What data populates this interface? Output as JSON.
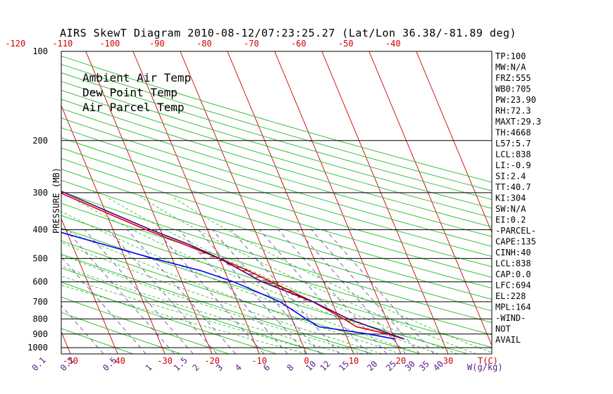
{
  "chart_data": {
    "type": "line",
    "title": "AIRS SkewT Diagram 2010-08-12/07:23:25.27 (Lat/Lon 36.38/-81.89 deg)",
    "ylabel": "PRESSURE (MB)",
    "xlabel": "T(C)",
    "mixing_ratio_unit": "W(g/kg)",
    "pressure_ticks": [
      100,
      200,
      300,
      400,
      500,
      600,
      700,
      800,
      900,
      1000
    ],
    "bottom_temp_ticks": [
      -50,
      -40,
      -30,
      -20,
      -10,
      0,
      10,
      20,
      30
    ],
    "top_temp_ticks": [
      -120,
      -110,
      -100,
      -90,
      -80,
      -70,
      -60,
      -50,
      -40
    ],
    "mixing_ratio_labels": [
      "0.1",
      "0.2",
      "0.5",
      "1",
      "1.5",
      "2",
      "3",
      "4",
      "6",
      "8",
      "10",
      "12",
      "15",
      "20",
      "25",
      "30",
      "35",
      "40"
    ],
    "legend": [
      {
        "name": "Ambient Air Temp",
        "color": "#dd0000"
      },
      {
        "name": "Dew Point Temp",
        "color": "#0000ee"
      },
      {
        "name": "Air Parcel Temp",
        "color": "#4b0082"
      }
    ],
    "series": [
      {
        "name": "Ambient Air Temp",
        "color": "#dd0000",
        "points": [
          [
            100,
            -68
          ],
          [
            140,
            -78
          ],
          [
            155,
            -77
          ],
          [
            200,
            -58
          ],
          [
            250,
            -48
          ],
          [
            300,
            -38
          ],
          [
            350,
            -30
          ],
          [
            400,
            -23
          ],
          [
            450,
            -16
          ],
          [
            500,
            -10
          ],
          [
            550,
            -5
          ],
          [
            600,
            -1
          ],
          [
            700,
            6
          ],
          [
            800,
            11
          ],
          [
            850,
            13
          ],
          [
            900,
            19
          ],
          [
            935,
            22
          ]
        ]
      },
      {
        "name": "Dew Point Temp",
        "color": "#0000ee",
        "points": [
          [
            100,
            -80
          ],
          [
            140,
            -80
          ],
          [
            155,
            -78
          ],
          [
            200,
            -58
          ],
          [
            250,
            -52
          ],
          [
            270,
            -52
          ],
          [
            300,
            -47
          ],
          [
            350,
            -45
          ],
          [
            400,
            -43
          ],
          [
            450,
            -33
          ],
          [
            500,
            -24
          ],
          [
            550,
            -15
          ],
          [
            600,
            -9
          ],
          [
            700,
            -1
          ],
          [
            800,
            3
          ],
          [
            850,
            5
          ],
          [
            900,
            15
          ],
          [
            935,
            20
          ]
        ]
      },
      {
        "name": "Air Parcel Temp",
        "color": "#4b0082",
        "points": [
          [
            100,
            -97
          ],
          [
            140,
            -79
          ],
          [
            200,
            -58
          ],
          [
            250,
            -47
          ],
          [
            300,
            -37
          ],
          [
            350,
            -29
          ],
          [
            400,
            -22
          ],
          [
            450,
            -15
          ],
          [
            500,
            -10
          ],
          [
            600,
            -3
          ],
          [
            700,
            6
          ],
          [
            800,
            12
          ],
          [
            935,
            22
          ]
        ]
      }
    ],
    "indices": [
      "TP:100",
      "MW:N/A",
      "FRZ:555",
      "WB0:705",
      "PW:23.90",
      "RH:72.3",
      "MAXT:29.3",
      "TH:4668",
      "L57:5.7",
      "LCL:838",
      "LI:-0.9",
      "SI:2.4",
      "TT:40.7",
      "KI:304",
      "SW:N/A",
      "EI:0.2",
      "-PARCEL-",
      "CAPE:135",
      "CINH:40",
      "LCL:838",
      "CAP:0.0",
      "LFC:694",
      "EL:228",
      "MPL:164",
      "-WIND-",
      "NOT",
      "AVAIL"
    ]
  }
}
